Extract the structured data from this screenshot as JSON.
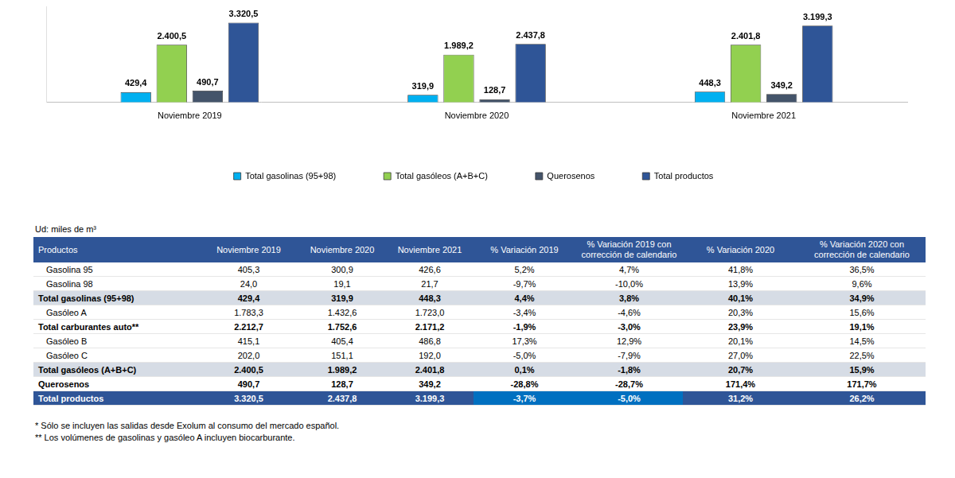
{
  "chart_data": {
    "type": "bar",
    "categories": [
      "Noviembre 2019",
      "Noviembre 2020",
      "Noviembre 2021"
    ],
    "series": [
      {
        "name": "Total gasolinas (95+98)",
        "color": "#00B0F0",
        "values": [
          429.4,
          319.9,
          448.3
        ],
        "value_labels": [
          "429,4",
          "319,9",
          "448,3"
        ]
      },
      {
        "name": "Total gasóleos (A+B+C)",
        "color": "#92D050",
        "values": [
          2400.5,
          1989.2,
          2401.8
        ],
        "value_labels": [
          "2.400,5",
          "1.989,2",
          "2.401,8"
        ]
      },
      {
        "name": "Querosenos",
        "color": "#44546A",
        "values": [
          490.7,
          128.7,
          349.2
        ],
        "value_labels": [
          "490,7",
          "128,7",
          "349,2"
        ]
      },
      {
        "name": "Total productos",
        "color": "#2F5597",
        "values": [
          3320.5,
          2437.8,
          3199.3
        ],
        "value_labels": [
          "3.320,5",
          "2.437,8",
          "3.199,3"
        ]
      }
    ],
    "ylim": [
      0,
      4000
    ],
    "grid": false,
    "legend": "bottom",
    "data_labels": true,
    "tick_labels": "x"
  },
  "units": "Ud: miles de m³",
  "table": {
    "header": [
      "Productos",
      "Noviembre 2019",
      "Noviembre 2020",
      "Noviembre 2021",
      "% Variación 2019",
      "% Variación 2019 con corrección de calendario",
      "% Variación 2020",
      "% Variación 2020 con corrección de calendario"
    ],
    "rows": [
      {
        "style": "item",
        "cells": [
          "Gasolina 95",
          "405,3",
          "300,9",
          "426,6",
          "5,2%",
          "4,7%",
          "41,8%",
          "36,5%"
        ]
      },
      {
        "style": "item",
        "cells": [
          "Gasolina 98",
          "24,0",
          "19,1",
          "21,7",
          "-9,7%",
          "-10,0%",
          "13,9%",
          "9,6%"
        ]
      },
      {
        "style": "total",
        "cells": [
          "Total gasolinas (95+98)",
          "429,4",
          "319,9",
          "448,3",
          "4,4%",
          "3,8%",
          "40,1%",
          "34,9%"
        ]
      },
      {
        "style": "item",
        "cells": [
          "Gasóleo A",
          "1.783,3",
          "1.432,6",
          "1.723,0",
          "-3,4%",
          "-4,6%",
          "20,3%",
          "15,6%"
        ]
      },
      {
        "style": "subtotal",
        "cells": [
          "Total carburantes auto**",
          "2.212,7",
          "1.752,6",
          "2.171,2",
          "-1,9%",
          "-3,0%",
          "23,9%",
          "19,1%"
        ]
      },
      {
        "style": "item",
        "cells": [
          "Gasóleo B",
          "415,1",
          "405,4",
          "486,8",
          "17,3%",
          "12,9%",
          "20,1%",
          "14,5%"
        ]
      },
      {
        "style": "item",
        "cells": [
          "Gasóleo C",
          "202,0",
          "151,1",
          "192,0",
          "-5,0%",
          "-7,9%",
          "27,0%",
          "22,5%"
        ]
      },
      {
        "style": "total",
        "cells": [
          "Total gasóleos (A+B+C)",
          "2.400,5",
          "1.989,2",
          "2.401,8",
          "0,1%",
          "-1,8%",
          "20,7%",
          "15,9%"
        ]
      },
      {
        "style": "subtotal",
        "cells": [
          "Querosenos",
          "490,7",
          "128,7",
          "349,2",
          "-28,8%",
          "-28,7%",
          "171,4%",
          "171,7%"
        ]
      },
      {
        "style": "grand_total",
        "cells": [
          "Total productos",
          "3.320,5",
          "2.437,8",
          "3.199,3",
          "-3,7%",
          "-5,0%",
          "31,2%",
          "26,2%"
        ]
      }
    ]
  },
  "notes": [
    "* Sólo se incluyen las salidas desde Exolum al consumo del mercado español.",
    "** Los volúmenes de gasolinas y gasóleo A incluyen biocarburante."
  ]
}
